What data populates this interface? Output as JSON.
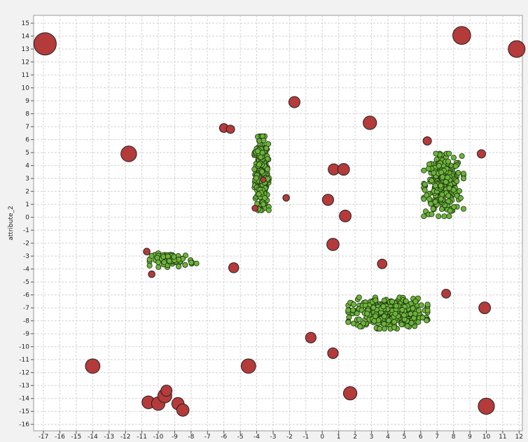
{
  "chart_data": {
    "type": "scatter",
    "title": "",
    "xlabel": "",
    "ylabel": "attribute_2",
    "xlim": [
      -17.6,
      12.2
    ],
    "ylim": [
      -16.5,
      15.6
    ],
    "x_ticks": [
      -17,
      -16,
      -15,
      -14,
      -13,
      -12,
      -11,
      -10,
      -9,
      -8,
      -7,
      -6,
      -5,
      -4,
      -3,
      -2,
      -1,
      0,
      1,
      2,
      3,
      4,
      5,
      6,
      7,
      8,
      9,
      10,
      11,
      12
    ],
    "y_ticks": [
      15,
      14,
      13,
      12,
      11,
      10,
      9,
      8,
      7,
      6,
      5,
      4,
      3,
      2,
      1,
      0,
      -1,
      -2,
      -3,
      -4,
      -5,
      -6,
      -7,
      -8,
      -9,
      -10,
      -11,
      -12,
      -13,
      -14,
      -15,
      -16
    ],
    "grid": true,
    "series": [
      {
        "color": "#b53a3a",
        "marker": "circle",
        "points": [
          {
            "x": -16.9,
            "y": 13.4,
            "size": 2.0
          },
          {
            "x": -11.8,
            "y": 4.9,
            "size": 1.4
          },
          {
            "x": -14.0,
            "y": -11.5,
            "size": 1.3
          },
          {
            "x": -6.0,
            "y": 6.9,
            "size": 0.8
          },
          {
            "x": -5.6,
            "y": 6.8,
            "size": 0.75
          },
          {
            "x": -5.4,
            "y": -3.9,
            "size": 0.9
          },
          {
            "x": -4.5,
            "y": -11.5,
            "size": 1.3
          },
          {
            "x": -4.1,
            "y": 0.7,
            "size": 0.55
          },
          {
            "x": -3.6,
            "y": 2.9,
            "size": 0.5
          },
          {
            "x": -2.2,
            "y": 1.5,
            "size": 0.6
          },
          {
            "x": -1.7,
            "y": 8.9,
            "size": 1.0
          },
          {
            "x": -0.7,
            "y": -9.3,
            "size": 0.95
          },
          {
            "x": 0.35,
            "y": 1.35,
            "size": 1.0
          },
          {
            "x": 0.65,
            "y": -2.1,
            "size": 1.1
          },
          {
            "x": 0.7,
            "y": 3.7,
            "size": 1.0
          },
          {
            "x": 1.3,
            "y": 3.7,
            "size": 1.05
          },
          {
            "x": 1.4,
            "y": 0.1,
            "size": 1.05
          },
          {
            "x": 0.65,
            "y": -10.5,
            "size": 0.95
          },
          {
            "x": 1.7,
            "y": -13.6,
            "size": 1.2
          },
          {
            "x": 2.9,
            "y": 7.3,
            "size": 1.2
          },
          {
            "x": 3.65,
            "y": -3.6,
            "size": 0.85
          },
          {
            "x": 6.4,
            "y": 5.9,
            "size": 0.75
          },
          {
            "x": 7.55,
            "y": -5.9,
            "size": 0.8
          },
          {
            "x": 8.5,
            "y": 14.05,
            "size": 1.6
          },
          {
            "x": 9.7,
            "y": 4.9,
            "size": 0.75
          },
          {
            "x": 9.9,
            "y": -7.0,
            "size": 1.05
          },
          {
            "x": 10.0,
            "y": -14.6,
            "size": 1.45
          },
          {
            "x": 11.85,
            "y": 13.0,
            "size": 1.5
          },
          {
            "x": -10.7,
            "y": -2.65,
            "size": 0.6
          },
          {
            "x": -10.4,
            "y": -4.4,
            "size": 0.6
          },
          {
            "x": -10.6,
            "y": -14.3,
            "size": 1.15
          },
          {
            "x": -10.0,
            "y": -14.4,
            "size": 1.2
          },
          {
            "x": -9.6,
            "y": -13.8,
            "size": 1.25
          },
          {
            "x": -9.5,
            "y": -13.4,
            "size": 1.0
          },
          {
            "x": -8.8,
            "y": -14.4,
            "size": 1.1
          },
          {
            "x": -8.5,
            "y": -14.9,
            "size": 1.1
          }
        ]
      },
      {
        "color": "#6bb43a",
        "marker": "circle",
        "clusters": [
          {
            "count": 320,
            "center_x": -3.7,
            "center_y": 3.4,
            "spread_x": 0.2,
            "spread_y": 1.3
          },
          {
            "count": 300,
            "center_x": 7.4,
            "center_y": 2.5,
            "spread_x": 0.55,
            "spread_y": 1.1
          },
          {
            "count": 400,
            "center_x": 4.0,
            "center_y": -7.4,
            "spread_x": 1.1,
            "spread_y": 0.55
          },
          {
            "count": 70,
            "center_x": -9.1,
            "center_y": -3.3,
            "spread_x": 0.65,
            "spread_y": 0.25
          }
        ]
      }
    ]
  }
}
